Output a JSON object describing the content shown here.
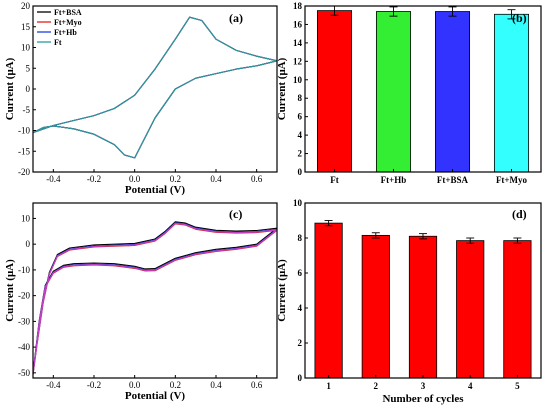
{
  "chart_data": [
    {
      "panel_label": "(a)",
      "type": "line",
      "xlabel": "Potential (V)",
      "ylabel": "Current (μA)",
      "xlim": [
        -0.5,
        0.7
      ],
      "ylim": [
        -20,
        20
      ],
      "xticks": [
        -0.4,
        -0.2,
        0.0,
        0.2,
        0.4,
        0.6
      ],
      "xtick_labels": [
        "-0.4",
        "-0.2",
        "0.0",
        "0.2",
        "0.4",
        "0.6"
      ],
      "yticks": [
        -20,
        -15,
        -10,
        -5,
        0,
        5,
        10,
        15,
        20
      ],
      "ytick_labels": [
        "-20",
        "-15",
        "-10",
        "-5",
        "0",
        "5",
        "10",
        "15",
        "20"
      ],
      "legend_position": "top-left",
      "series": [
        {
          "name": "Ft+BSA",
          "color": "#000000",
          "peak_anodic_offset": 0.0
        },
        {
          "name": "Ft+Myo",
          "color": "#e0201b",
          "peak_anodic_offset": 0.15
        },
        {
          "name": "Ft+Hb",
          "color": "#1f3fe0",
          "peak_anodic_offset": -0.1
        },
        {
          "name": "Ft",
          "color": "#2a9a9a",
          "peak_anodic_offset": 0.0
        }
      ],
      "cv_shape": {
        "anodic": [
          [
            -0.5,
            -10.5
          ],
          [
            -0.4,
            -8.8
          ],
          [
            -0.3,
            -7.6
          ],
          [
            -0.2,
            -6.4
          ],
          [
            -0.1,
            -4.7
          ],
          [
            0.0,
            -1.5
          ],
          [
            0.1,
            4.8
          ],
          [
            0.2,
            12.0
          ],
          [
            0.27,
            17.3
          ],
          [
            0.33,
            16.5
          ],
          [
            0.4,
            12.0
          ],
          [
            0.5,
            9.3
          ],
          [
            0.6,
            7.9
          ],
          [
            0.7,
            6.8
          ]
        ],
        "cathodic": [
          [
            0.7,
            6.8
          ],
          [
            0.6,
            5.6
          ],
          [
            0.5,
            4.8
          ],
          [
            0.4,
            3.7
          ],
          [
            0.3,
            2.6
          ],
          [
            0.2,
            0.0
          ],
          [
            0.1,
            -7.0
          ],
          [
            0.0,
            -16.6
          ],
          [
            -0.05,
            -15.9
          ],
          [
            -0.1,
            -13.4
          ],
          [
            -0.2,
            -10.9
          ],
          [
            -0.3,
            -9.6
          ],
          [
            -0.4,
            -8.9
          ],
          [
            -0.45,
            -9.3
          ],
          [
            -0.5,
            -10.5
          ]
        ]
      }
    },
    {
      "panel_label": "(b)",
      "type": "bar",
      "categories": [
        "Ft",
        "Ft+Hb",
        "Ft+BSA",
        "Ft+Myo"
      ],
      "values": [
        17.5,
        17.4,
        17.4,
        17.1
      ],
      "errors": [
        0.5,
        0.5,
        0.5,
        0.5
      ],
      "colors": [
        "#ff0000",
        "#33ee33",
        "#3333ff",
        "#33ffff"
      ],
      "ylabel": "Current (μA)",
      "ylim": [
        0,
        18
      ],
      "yticks": [
        0,
        2,
        4,
        6,
        8,
        10,
        12,
        14,
        16,
        18
      ],
      "ytick_labels": [
        "0",
        "2",
        "4",
        "6",
        "8",
        "10",
        "12",
        "14",
        "16",
        "18"
      ]
    },
    {
      "panel_label": "(c)",
      "type": "line",
      "xlabel": "Potential (V)",
      "ylabel": "Current (μA)",
      "xlim": [
        -0.5,
        0.7
      ],
      "ylim": [
        -52,
        16
      ],
      "xticks": [
        -0.4,
        -0.2,
        0.0,
        0.2,
        0.4,
        0.6
      ],
      "xtick_labels": [
        "-0.4",
        "-0.2",
        "0.0",
        "0.2",
        "0.4",
        "0.6"
      ],
      "yticks": [
        -50,
        -40,
        -30,
        -20,
        -10,
        0,
        10
      ],
      "ytick_labels": [
        "-50",
        "-40",
        "-30",
        "-20",
        "-10",
        "0",
        "10"
      ],
      "series": [
        {
          "color": "#000000",
          "shift": 0.0
        },
        {
          "color": "#e0201b",
          "shift": -0.8
        },
        {
          "color": "#1f3fe0",
          "shift": -0.4
        },
        {
          "color": "#c040c0",
          "shift": -0.6
        }
      ],
      "cv_shape": {
        "anodic": [
          [
            -0.5,
            -50
          ],
          [
            -0.48,
            -38
          ],
          [
            -0.45,
            -22
          ],
          [
            -0.42,
            -11
          ],
          [
            -0.38,
            -4
          ],
          [
            -0.32,
            -1.5
          ],
          [
            -0.2,
            -0.3
          ],
          [
            0.0,
            0.3
          ],
          [
            0.1,
            2
          ],
          [
            0.15,
            5
          ],
          [
            0.2,
            8.7
          ],
          [
            0.25,
            8.2
          ],
          [
            0.3,
            6.6
          ],
          [
            0.4,
            5.4
          ],
          [
            0.5,
            5.1
          ],
          [
            0.6,
            5.3
          ],
          [
            0.7,
            6.2
          ]
        ],
        "cathodic": [
          [
            0.7,
            2.5
          ],
          [
            0.6,
            0.0
          ],
          [
            0.5,
            -1.2
          ],
          [
            0.4,
            -2.0
          ],
          [
            0.3,
            -3.3
          ],
          [
            0.2,
            -5.5
          ],
          [
            0.1,
            -9.5
          ],
          [
            0.05,
            -9.6
          ],
          [
            0.0,
            -8.6
          ],
          [
            -0.1,
            -7.6
          ],
          [
            -0.2,
            -7.3
          ],
          [
            -0.3,
            -7.6
          ],
          [
            -0.35,
            -8.2
          ],
          [
            -0.4,
            -10.5
          ],
          [
            -0.44,
            -16
          ],
          [
            -0.47,
            -30
          ],
          [
            -0.5,
            -50
          ]
        ]
      }
    },
    {
      "panel_label": "(d)",
      "type": "bar",
      "categories": [
        "1",
        "2",
        "3",
        "4",
        "5"
      ],
      "values": [
        8.85,
        8.15,
        8.1,
        7.85,
        7.85
      ],
      "errors": [
        0.15,
        0.15,
        0.15,
        0.15,
        0.15
      ],
      "colors": [
        "#ff0000",
        "#ff0000",
        "#ff0000",
        "#ff0000",
        "#ff0000"
      ],
      "xlabel": "Number of cycles",
      "ylabel": "Current (μA)",
      "ylim": [
        0,
        10
      ],
      "yticks": [
        0,
        2,
        4,
        6,
        8,
        10
      ],
      "ytick_labels": [
        "0",
        "2",
        "4",
        "6",
        "8",
        "10"
      ]
    }
  ]
}
